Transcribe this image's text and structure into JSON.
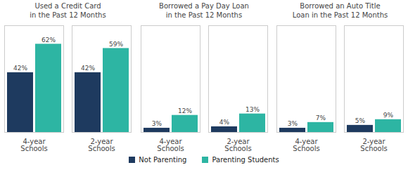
{
  "chart_data": [
    {
      "type": "bar",
      "title": "Used a Credit Card\nin the Past 12 Months",
      "categories": [
        "4-year\nSchools",
        "2-year\nSchools"
      ],
      "series": [
        {
          "name": "Not Parenting",
          "color": "#1e3a5f",
          "values": [
            42,
            42
          ],
          "value_labels": [
            "42%",
            "42%"
          ]
        },
        {
          "name": "Parenting Students",
          "color": "#2db5a3",
          "values": [
            62,
            59
          ],
          "value_labels": [
            "62%",
            "59%"
          ]
        }
      ],
      "ylim": [
        0,
        75
      ],
      "data_labels": true,
      "tick_labels": "x",
      "legend": "bottom"
    },
    {
      "type": "bar",
      "title": "Borrowed a Pay Day Loan\nin the Past 12 Months",
      "categories": [
        "4-year\nSchools",
        "2-year\nSchools"
      ],
      "series": [
        {
          "name": "Not Parenting",
          "color": "#1e3a5f",
          "values": [
            3,
            4
          ],
          "value_labels": [
            "3%",
            "4%"
          ]
        },
        {
          "name": "Parenting Students",
          "color": "#2db5a3",
          "values": [
            12,
            13
          ],
          "value_labels": [
            "12%",
            "13%"
          ]
        }
      ],
      "ylim": [
        0,
        75
      ],
      "data_labels": true,
      "tick_labels": "x",
      "legend": "bottom"
    },
    {
      "type": "bar",
      "title": "Borrowed an Auto Title\nLoan in the Past 12 Months",
      "categories": [
        "4-year\nSchools",
        "2-year\nSchools"
      ],
      "series": [
        {
          "name": "Not Parenting",
          "color": "#1e3a5f",
          "values": [
            3,
            5
          ],
          "value_labels": [
            "3%",
            "5%"
          ]
        },
        {
          "name": "Parenting Students",
          "color": "#2db5a3",
          "values": [
            7,
            9
          ],
          "value_labels": [
            "7%",
            "9%"
          ]
        }
      ],
      "ylim": [
        0,
        75
      ],
      "data_labels": true,
      "tick_labels": "x",
      "legend": "bottom"
    }
  ]
}
